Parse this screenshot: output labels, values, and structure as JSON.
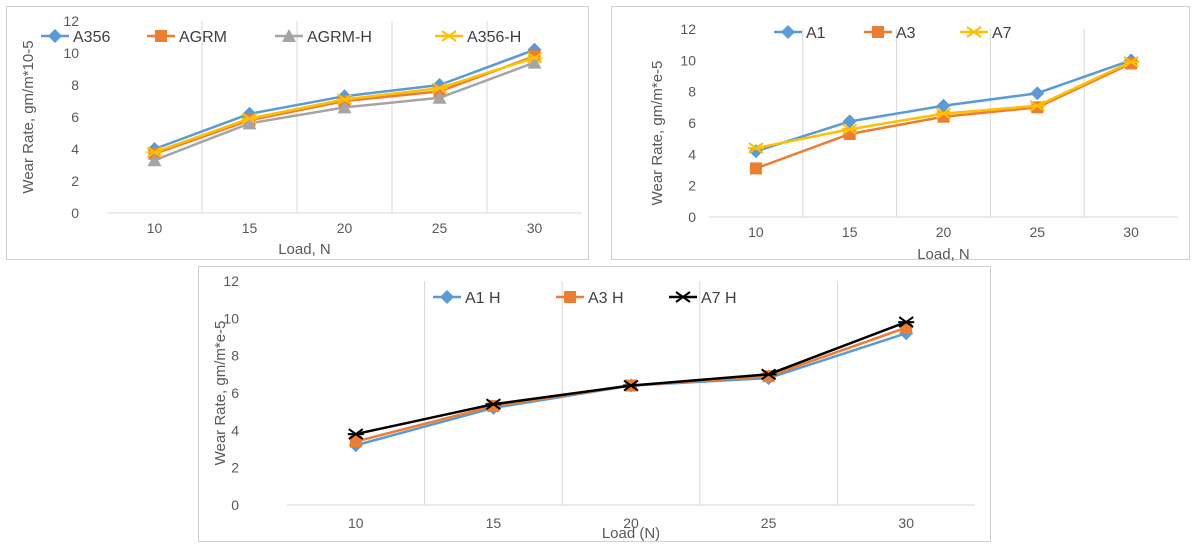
{
  "chart_data": [
    {
      "type": "line",
      "x": [
        10,
        15,
        20,
        25,
        30
      ],
      "xlabel": "Load, N",
      "ylabel": "Wear Rate, gm/m*10-5",
      "ylim": [
        0,
        12
      ],
      "yticks": [
        0,
        2,
        4,
        6,
        8,
        10,
        12
      ],
      "grid": "vertical",
      "legend": "top",
      "series": [
        {
          "name": "A356",
          "values": [
            4.0,
            6.2,
            7.3,
            8.0,
            10.2
          ],
          "color": "#5B9BD5",
          "marker": "diamond"
        },
        {
          "name": "AGRM",
          "values": [
            3.7,
            5.8,
            7.0,
            7.6,
            9.8
          ],
          "color": "#ED7D31",
          "marker": "square"
        },
        {
          "name": "AGRM-H",
          "values": [
            3.3,
            5.6,
            6.6,
            7.2,
            9.4
          ],
          "color": "#A5A5A5",
          "marker": "triangle"
        },
        {
          "name": "A356-H",
          "values": [
            3.8,
            5.9,
            7.1,
            7.8,
            9.7
          ],
          "color": "#FFC000",
          "marker": "x"
        }
      ]
    },
    {
      "type": "line",
      "x": [
        10,
        15,
        20,
        25,
        30
      ],
      "xlabel": "Load, N",
      "ylabel": "Wear Rate, gm/m*e-5",
      "ylim": [
        0,
        12
      ],
      "yticks": [
        0,
        2,
        4,
        6,
        8,
        10,
        12
      ],
      "grid": "vertical",
      "legend": "top",
      "series": [
        {
          "name": "A1",
          "values": [
            4.2,
            6.1,
            7.1,
            7.9,
            10.0
          ],
          "color": "#5B9BD5",
          "marker": "diamond"
        },
        {
          "name": "A3",
          "values": [
            3.1,
            5.3,
            6.4,
            7.0,
            9.8
          ],
          "color": "#ED7D31",
          "marker": "square"
        },
        {
          "name": "A7",
          "values": [
            4.4,
            5.6,
            6.6,
            7.1,
            9.9
          ],
          "color": "#FFC000",
          "marker": "x"
        }
      ]
    },
    {
      "type": "line",
      "x": [
        10,
        15,
        20,
        25,
        30
      ],
      "xlabel": "Load (N)",
      "ylabel": "Wear Rate, gm/m*e-5",
      "ylim": [
        0,
        12
      ],
      "yticks": [
        0,
        2,
        4,
        6,
        8,
        10,
        12
      ],
      "grid": "vertical",
      "legend": "top",
      "series": [
        {
          "name": "A1 H",
          "values": [
            3.2,
            5.2,
            6.4,
            6.8,
            9.2
          ],
          "color": "#5B9BD5",
          "marker": "diamond"
        },
        {
          "name": "A3 H",
          "values": [
            3.4,
            5.3,
            6.4,
            6.9,
            9.5
          ],
          "color": "#ED7D31",
          "marker": "square"
        },
        {
          "name": "A7 H",
          "values": [
            3.8,
            5.4,
            6.4,
            7.0,
            9.8
          ],
          "color": "#000000",
          "marker": "x"
        }
      ]
    }
  ]
}
